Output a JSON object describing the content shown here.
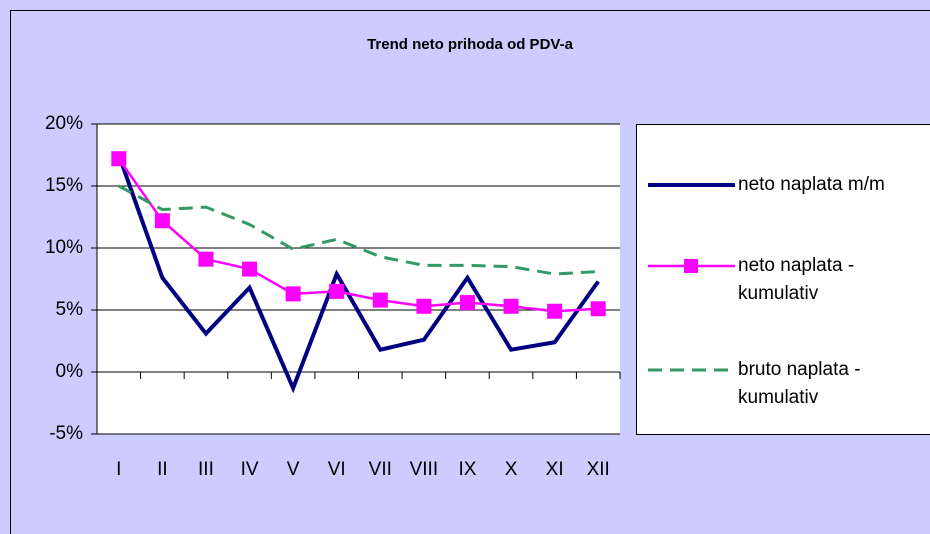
{
  "chart_data": {
    "type": "line",
    "title": "Trend neto prihoda od PDV-a",
    "categories": [
      "I",
      "II",
      "III",
      "IV",
      "V",
      "VI",
      "VII",
      "VIII",
      "IX",
      "X",
      "XI",
      "XII"
    ],
    "series": [
      {
        "name": "neto naplata m/m",
        "color": "#000080",
        "values": [
          17.5,
          7.6,
          3.1,
          6.8,
          -1.3,
          7.9,
          1.8,
          2.6,
          7.6,
          1.8,
          2.4,
          7.3
        ]
      },
      {
        "name": "neto naplata - kumulativ",
        "color": "#ff00ff",
        "values": [
          17.2,
          12.2,
          9.1,
          8.3,
          6.3,
          6.5,
          5.8,
          5.3,
          5.6,
          5.3,
          4.9,
          5.1
        ]
      },
      {
        "name": "bruto naplata - kumulativ",
        "color": "#339966",
        "values": [
          15.0,
          13.1,
          13.3,
          11.9,
          9.9,
          10.7,
          9.3,
          8.6,
          8.6,
          8.5,
          7.9,
          8.1
        ]
      }
    ],
    "ylim": [
      -5,
      20
    ],
    "yticks": [
      {
        "value": -5,
        "label": "-5%"
      },
      {
        "value": 0,
        "label": "0%"
      },
      {
        "value": 5,
        "label": "5%"
      },
      {
        "value": 10,
        "label": "10%"
      },
      {
        "value": 15,
        "label": "15%"
      },
      {
        "value": 20,
        "label": "20%"
      }
    ],
    "grid": true
  }
}
